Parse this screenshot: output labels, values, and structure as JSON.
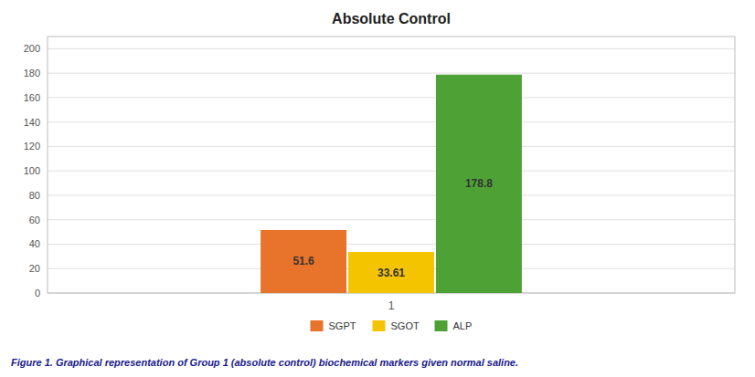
{
  "chart_data": {
    "type": "bar",
    "title": "Absolute Control",
    "caption": "Figure 1. Graphical representation of Group 1 (absolute control) biochemical markers given normal saline.",
    "categories": [
      "1"
    ],
    "series": [
      {
        "name": "SGPT",
        "color": "#E8732A",
        "values": [
          51.6
        ]
      },
      {
        "name": "SGOT",
        "color": "#F5C400",
        "values": [
          33.61
        ]
      },
      {
        "name": "ALP",
        "color": "#4EA135",
        "values": [
          178.8
        ]
      }
    ],
    "ylim": [
      0,
      210
    ],
    "yticks": [
      0,
      20,
      40,
      60,
      80,
      100,
      120,
      140,
      160,
      180,
      200
    ],
    "grid": true,
    "legend": "bottom",
    "data_labels": true
  }
}
